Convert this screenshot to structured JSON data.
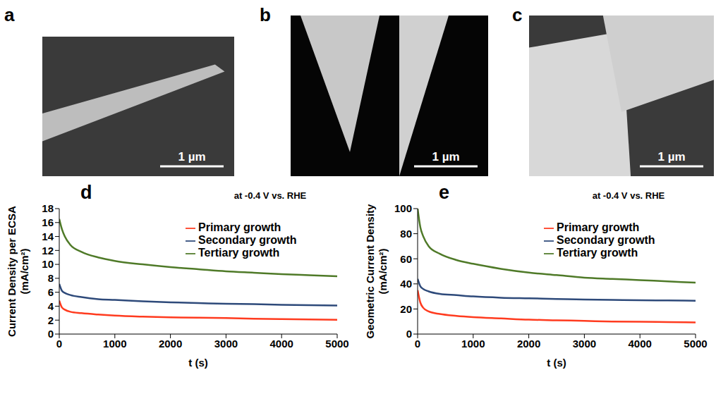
{
  "images": [
    {
      "panel": "a",
      "scale_bar": "1 µm"
    },
    {
      "panel": "b",
      "scale_bar": "1 µm"
    },
    {
      "panel": "c",
      "scale_bar": "1 µm"
    }
  ],
  "chart_data": [
    {
      "panel": "d",
      "type": "line",
      "title": "at -0.4 V vs. RHE",
      "x_label": "t (s)",
      "y_label": "Current Density per ECSA (mA/cm²)",
      "x": [
        0,
        50,
        100,
        200,
        400,
        700,
        1000,
        1500,
        2000,
        2500,
        3000,
        3500,
        4000,
        4500,
        5000
      ],
      "xlim": [
        0,
        5000
      ],
      "xticks": [
        0,
        1000,
        2000,
        3000,
        4000,
        5000
      ],
      "ylim": [
        0,
        18
      ],
      "yticks": [
        0,
        2,
        4,
        6,
        8,
        10,
        12,
        14,
        16,
        18
      ],
      "grid": false,
      "legend": "upper right",
      "series": [
        {
          "name": "Tertiary growth",
          "color": "#4f7a28",
          "values": [
            16.5,
            15,
            14,
            12.8,
            11.8,
            11,
            10.5,
            10,
            9.6,
            9.3,
            9.0,
            8.8,
            8.6,
            8.45,
            8.3
          ]
        },
        {
          "name": "Secondary growth",
          "color": "#2e4a7a",
          "values": [
            7.2,
            6.2,
            5.9,
            5.6,
            5.3,
            5.0,
            4.9,
            4.7,
            4.55,
            4.45,
            4.35,
            4.3,
            4.2,
            4.15,
            4.1
          ]
        },
        {
          "name": "Primary growth",
          "color": "#ff3b1f",
          "values": [
            4.8,
            3.8,
            3.5,
            3.2,
            3.0,
            2.8,
            2.65,
            2.5,
            2.4,
            2.35,
            2.3,
            2.2,
            2.15,
            2.1,
            2.05
          ]
        }
      ]
    },
    {
      "panel": "e",
      "type": "line",
      "title": "at -0.4 V vs. RHE",
      "x_label": "t (s)",
      "y_label": "Geometric Current Density (mA/cm²)",
      "x": [
        0,
        50,
        100,
        200,
        400,
        700,
        1000,
        1500,
        2000,
        2500,
        3000,
        3500,
        4000,
        4500,
        5000
      ],
      "xlim": [
        0,
        5000
      ],
      "xticks": [
        0,
        1000,
        2000,
        3000,
        4000,
        5000
      ],
      "ylim": [
        0,
        100
      ],
      "yticks": [
        0,
        20,
        40,
        60,
        80,
        100
      ],
      "grid": false,
      "legend": "upper right",
      "series": [
        {
          "name": "Tertiary growth",
          "color": "#4f7a28",
          "values": [
            100,
            85,
            78,
            70,
            64,
            59,
            56,
            52,
            49,
            47,
            45,
            44,
            43,
            42,
            41
          ]
        },
        {
          "name": "Secondary growth",
          "color": "#2e4a7a",
          "values": [
            44,
            38,
            36,
            34,
            32,
            31,
            30,
            29,
            28.5,
            28,
            27.5,
            27.2,
            27,
            26.8,
            26.5
          ]
        },
        {
          "name": "Primary growth",
          "color": "#ff3b1f",
          "values": [
            35,
            25,
            21,
            18,
            16,
            14.5,
            13.5,
            12.5,
            11.5,
            11,
            10.5,
            10,
            9.8,
            9.6,
            9.3
          ]
        }
      ]
    }
  ]
}
